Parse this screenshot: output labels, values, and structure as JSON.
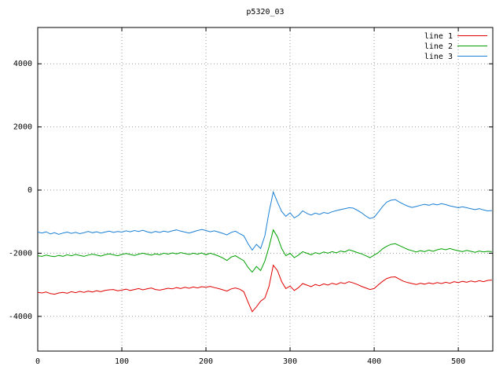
{
  "chart_data": {
    "type": "line",
    "title": "p5320_03",
    "grid": true,
    "legend_position": "top-right",
    "xlim": [
      0,
      541
    ],
    "ylim": [
      -5100,
      5150
    ],
    "x_ticks": [
      0,
      100,
      200,
      300,
      400,
      500
    ],
    "y_ticks": [
      -4000,
      -2000,
      0,
      2000,
      4000
    ],
    "x": [
      0,
      5,
      10,
      15,
      20,
      25,
      30,
      35,
      40,
      45,
      50,
      55,
      60,
      65,
      70,
      75,
      80,
      85,
      90,
      95,
      100,
      105,
      110,
      115,
      120,
      125,
      130,
      135,
      140,
      145,
      150,
      155,
      160,
      165,
      170,
      175,
      180,
      185,
      190,
      195,
      200,
      205,
      210,
      215,
      220,
      225,
      230,
      235,
      240,
      245,
      250,
      255,
      260,
      265,
      270,
      275,
      280,
      285,
      290,
      295,
      300,
      305,
      310,
      315,
      320,
      325,
      330,
      335,
      340,
      345,
      350,
      355,
      360,
      365,
      370,
      375,
      380,
      385,
      390,
      395,
      400,
      405,
      410,
      415,
      420,
      425,
      430,
      435,
      440,
      445,
      450,
      455,
      460,
      465,
      470,
      475,
      480,
      485,
      490,
      495,
      500,
      505,
      510,
      515,
      520,
      525,
      530,
      535,
      540
    ],
    "series": [
      {
        "name": "line 1",
        "color": "#e00000",
        "values": [
          -3240,
          -3260,
          -3230,
          -3280,
          -3300,
          -3260,
          -3240,
          -3270,
          -3220,
          -3250,
          -3210,
          -3240,
          -3200,
          -3230,
          -3190,
          -3220,
          -3180,
          -3160,
          -3150,
          -3190,
          -3170,
          -3140,
          -3180,
          -3150,
          -3120,
          -3160,
          -3130,
          -3100,
          -3150,
          -3170,
          -3140,
          -3110,
          -3130,
          -3090,
          -3120,
          -3080,
          -3110,
          -3070,
          -3100,
          -3060,
          -3080,
          -3050,
          -3090,
          -3120,
          -3160,
          -3200,
          -3130,
          -3100,
          -3140,
          -3220,
          -3550,
          -3850,
          -3700,
          -3520,
          -3420,
          -3050,
          -2380,
          -2550,
          -2900,
          -3120,
          -3040,
          -3180,
          -3090,
          -2960,
          -3010,
          -3060,
          -2990,
          -3030,
          -2970,
          -3010,
          -2950,
          -2990,
          -2930,
          -2960,
          -2900,
          -2940,
          -2990,
          -3050,
          -3100,
          -3150,
          -3120,
          -3000,
          -2890,
          -2800,
          -2760,
          -2750,
          -2820,
          -2890,
          -2930,
          -2960,
          -2990,
          -2950,
          -2980,
          -2940,
          -2970,
          -2930,
          -2960,
          -2920,
          -2950,
          -2900,
          -2930,
          -2890,
          -2920,
          -2880,
          -2910,
          -2870,
          -2900,
          -2860,
          -2850
        ]
      },
      {
        "name": "line 2",
        "color": "#00a000",
        "values": [
          -2080,
          -2100,
          -2060,
          -2090,
          -2110,
          -2070,
          -2100,
          -2050,
          -2080,
          -2040,
          -2070,
          -2100,
          -2060,
          -2030,
          -2060,
          -2090,
          -2050,
          -2020,
          -2050,
          -2080,
          -2040,
          -2010,
          -2040,
          -2070,
          -2030,
          -2000,
          -2030,
          -2060,
          -2020,
          -2050,
          -2000,
          -2030,
          -1990,
          -2020,
          -1980,
          -2010,
          -2040,
          -2000,
          -2030,
          -1990,
          -2050,
          -2000,
          -2040,
          -2090,
          -2150,
          -2230,
          -2120,
          -2080,
          -2160,
          -2240,
          -2450,
          -2600,
          -2420,
          -2550,
          -2250,
          -1800,
          -1260,
          -1480,
          -1850,
          -2080,
          -2000,
          -2140,
          -2060,
          -1950,
          -2000,
          -2050,
          -1980,
          -2020,
          -1960,
          -2000,
          -1950,
          -1990,
          -1930,
          -1960,
          -1890,
          -1930,
          -1980,
          -2020,
          -2080,
          -2140,
          -2060,
          -1980,
          -1860,
          -1780,
          -1720,
          -1700,
          -1760,
          -1820,
          -1880,
          -1920,
          -1960,
          -1920,
          -1950,
          -1900,
          -1940,
          -1890,
          -1860,
          -1890,
          -1850,
          -1890,
          -1920,
          -1950,
          -1910,
          -1940,
          -1970,
          -1930,
          -1960,
          -1940,
          -1950
        ]
      },
      {
        "name": "line 3",
        "color": "#1a7fd4",
        "values": [
          -1330,
          -1360,
          -1320,
          -1390,
          -1350,
          -1400,
          -1360,
          -1330,
          -1370,
          -1340,
          -1380,
          -1350,
          -1310,
          -1350,
          -1320,
          -1360,
          -1330,
          -1300,
          -1340,
          -1310,
          -1330,
          -1290,
          -1320,
          -1280,
          -1310,
          -1270,
          -1320,
          -1350,
          -1310,
          -1340,
          -1300,
          -1330,
          -1290,
          -1260,
          -1300,
          -1330,
          -1360,
          -1320,
          -1280,
          -1250,
          -1280,
          -1320,
          -1290,
          -1330,
          -1370,
          -1420,
          -1340,
          -1300,
          -1380,
          -1450,
          -1700,
          -1900,
          -1720,
          -1850,
          -1450,
          -700,
          -60,
          -380,
          -680,
          -830,
          -720,
          -880,
          -800,
          -660,
          -740,
          -790,
          -730,
          -770,
          -710,
          -740,
          -690,
          -650,
          -620,
          -590,
          -560,
          -570,
          -640,
          -720,
          -820,
          -900,
          -860,
          -700,
          -520,
          -380,
          -320,
          -300,
          -380,
          -450,
          -510,
          -550,
          -520,
          -480,
          -450,
          -480,
          -440,
          -470,
          -430,
          -460,
          -500,
          -530,
          -560,
          -530,
          -560,
          -590,
          -620,
          -590,
          -630,
          -660,
          -650
        ]
      }
    ],
    "colors": {
      "grid": "#9a9a9a",
      "axis": "#000000",
      "background": "#ffffff"
    }
  }
}
